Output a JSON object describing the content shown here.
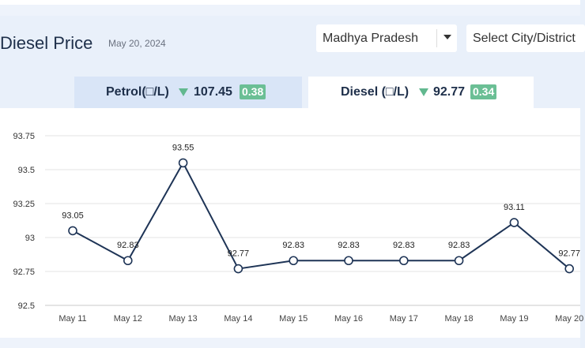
{
  "header": {
    "title": "Diesel Price",
    "date": "May 20, 2024",
    "state_select": "Madhya Pradesh",
    "city_select": "Select City/District"
  },
  "tabs": [
    {
      "label": "Petrol(□/L)",
      "value": "107.45",
      "change": "0.38",
      "active": false
    },
    {
      "label": "Diesel (□/L)",
      "value": "92.77",
      "change": "0.34",
      "active": true
    }
  ],
  "colors": {
    "line": "#1e3456",
    "badge": "#6bbf95",
    "down_arrow": "#62b88f"
  },
  "chart_data": {
    "type": "line",
    "categories": [
      "May 11",
      "May 12",
      "May 13",
      "May 14",
      "May 15",
      "May 16",
      "May 17",
      "May 18",
      "May 19",
      "May 20"
    ],
    "values": [
      93.05,
      92.83,
      93.55,
      92.77,
      92.83,
      92.83,
      92.83,
      92.83,
      93.11,
      92.77
    ],
    "value_labels": [
      "93.05",
      "92.83",
      "93.55",
      "92.77",
      "92.83",
      "92.83",
      "92.83",
      "92.83",
      "93.11",
      "92.77"
    ],
    "y_ticks": [
      "92.5",
      "92.75",
      "93",
      "93.25",
      "93.5",
      "93.75"
    ],
    "ylim": [
      92.5,
      93.75
    ],
    "grid": true
  }
}
